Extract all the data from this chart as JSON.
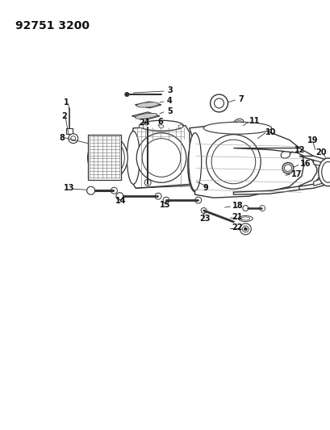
{
  "title": "92751 3200",
  "bg_color": "#ffffff",
  "line_color": "#333333",
  "text_color": "#111111",
  "title_fontsize": 10,
  "label_fontsize": 7,
  "fig_width": 4.1,
  "fig_height": 5.33,
  "dpi": 100
}
